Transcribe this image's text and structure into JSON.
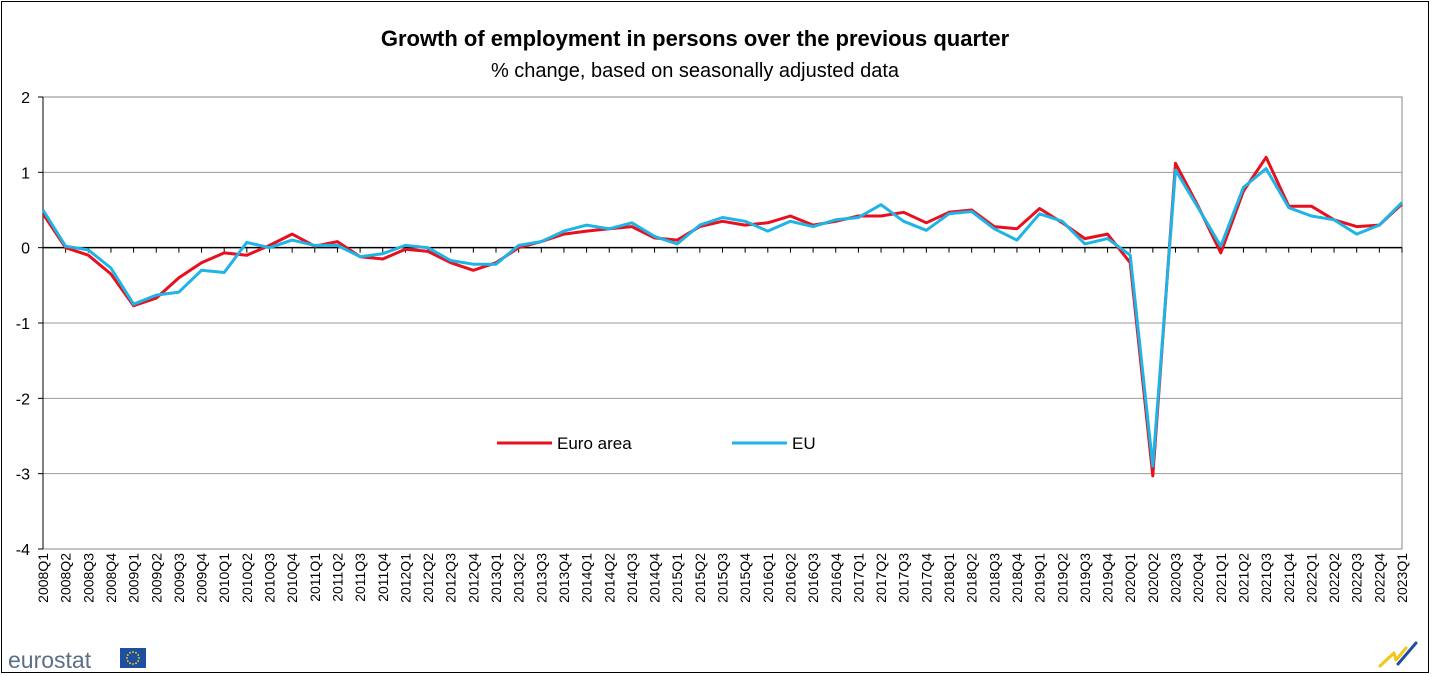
{
  "chart_data": {
    "type": "line",
    "title": "Growth of employment in persons  over the previous quarter",
    "subtitle": "% change, based on seasonally adjusted data",
    "xlabel": "",
    "ylabel": "",
    "ylim": [
      -4,
      2
    ],
    "yticks": [
      2,
      1,
      0,
      -1,
      -2,
      -3,
      -4
    ],
    "grid": true,
    "legend_position": "lower-center",
    "categories": [
      "2008Q1",
      "2008Q2",
      "2008Q3",
      "2008Q4",
      "2009Q1",
      "2009Q2",
      "2009Q3",
      "2009Q4",
      "2010Q1",
      "2010Q2",
      "2010Q3",
      "2010Q4",
      "2011Q1",
      "2011Q2",
      "2011Q3",
      "2011Q4",
      "2012Q1",
      "2012Q2",
      "2012Q3",
      "2012Q4",
      "2013Q1",
      "2013Q2",
      "2013Q3",
      "2013Q4",
      "2014Q1",
      "2014Q2",
      "2014Q3",
      "2014Q4",
      "2015Q1",
      "2015Q2",
      "2015Q3",
      "2015Q4",
      "2016Q1",
      "2016Q2",
      "2016Q3",
      "2016Q4",
      "2017Q1",
      "2017Q2",
      "2017Q3",
      "2017Q4",
      "2018Q1",
      "2018Q2",
      "2018Q3",
      "2018Q4",
      "2019Q1",
      "2019Q2",
      "2019Q3",
      "2019Q4",
      "2020Q1",
      "2020Q2",
      "2020Q3",
      "2020Q4",
      "2021Q1",
      "2021Q2",
      "2021Q3",
      "2021Q4",
      "2022Q1",
      "2022Q2",
      "2022Q3",
      "2022Q4",
      "2023Q1"
    ],
    "series": [
      {
        "name": "Euro area",
        "color": "#e8101e",
        "values": [
          0.45,
          0.0,
          -0.1,
          -0.35,
          -0.77,
          -0.67,
          -0.4,
          -0.2,
          -0.07,
          -0.1,
          0.03,
          0.18,
          0.02,
          0.08,
          -0.12,
          -0.15,
          -0.02,
          -0.05,
          -0.2,
          -0.3,
          -0.2,
          0.0,
          0.08,
          0.18,
          0.22,
          0.25,
          0.28,
          0.13,
          0.1,
          0.28,
          0.35,
          0.3,
          0.33,
          0.42,
          0.3,
          0.35,
          0.42,
          0.42,
          0.47,
          0.33,
          0.47,
          0.5,
          0.28,
          0.25,
          0.52,
          0.33,
          0.12,
          0.18,
          -0.2,
          -3.03,
          1.12,
          0.55,
          -0.07,
          0.75,
          1.2,
          0.55,
          0.55,
          0.37,
          0.28,
          0.3,
          0.58
        ]
      },
      {
        "name": "EU",
        "color": "#1eb4e6",
        "values": [
          0.5,
          0.02,
          -0.03,
          -0.27,
          -0.75,
          -0.63,
          -0.59,
          -0.3,
          -0.33,
          0.07,
          0.0,
          0.1,
          0.03,
          0.03,
          -0.12,
          -0.08,
          0.03,
          0.0,
          -0.17,
          -0.22,
          -0.22,
          0.03,
          0.08,
          0.22,
          0.3,
          0.25,
          0.33,
          0.15,
          0.05,
          0.3,
          0.4,
          0.35,
          0.22,
          0.35,
          0.28,
          0.37,
          0.4,
          0.57,
          0.35,
          0.23,
          0.45,
          0.48,
          0.25,
          0.1,
          0.45,
          0.35,
          0.05,
          0.12,
          -0.1,
          -2.9,
          1.03,
          0.53,
          0.02,
          0.8,
          1.05,
          0.53,
          0.42,
          0.37,
          0.18,
          0.3,
          0.6
        ]
      }
    ]
  },
  "branding": {
    "logo_text": "eurostat",
    "flag_color": "#1f4fa0",
    "star_color": "#ffdd00"
  }
}
